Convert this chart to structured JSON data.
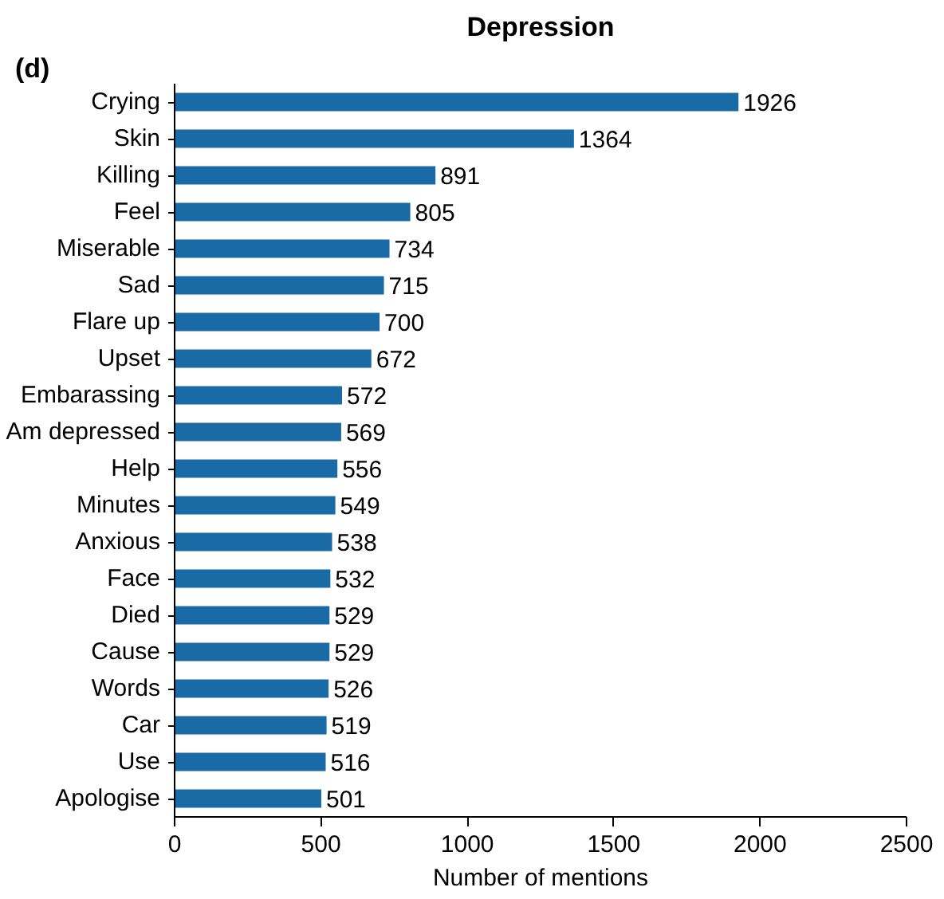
{
  "chart_data": {
    "type": "bar",
    "orientation": "horizontal",
    "title": "Depression",
    "xlabel": "Number of mentions",
    "annotations": [
      "(d)"
    ],
    "categories": [
      "Crying",
      "Skin",
      "Killing",
      "Feel",
      "Miserable",
      "Sad",
      "Flare up",
      "Upset",
      "Embarassing",
      "Am depressed",
      "Help",
      "Minutes",
      "Anxious",
      "Face",
      "Died",
      "Cause",
      "Words",
      "Car",
      "Use",
      "Apologise"
    ],
    "values": [
      1926,
      1364,
      891,
      805,
      734,
      715,
      700,
      672,
      572,
      569,
      556,
      549,
      538,
      532,
      529,
      529,
      526,
      519,
      516,
      501
    ],
    "color": "#1a6aa6",
    "xlim": [
      0,
      2500
    ],
    "xticks": [
      0,
      500,
      1000,
      1500,
      2000,
      2500
    ],
    "data_labels": true,
    "grid": false
  }
}
